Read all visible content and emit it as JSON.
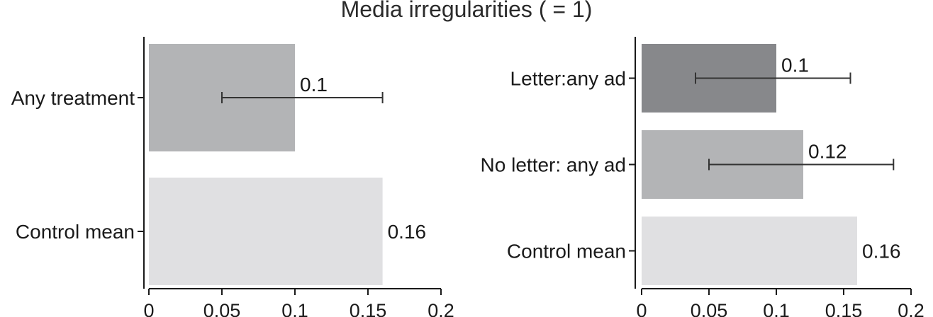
{
  "title": "Media irregularities ( = 1)",
  "chart_data": [
    {
      "type": "bar",
      "orientation": "horizontal",
      "categories": [
        "Any treatment",
        "Control mean"
      ],
      "values": [
        0.1,
        0.16
      ],
      "value_labels": [
        "0.1",
        "0.16"
      ],
      "error_bars": [
        [
          0.05,
          0.16
        ],
        null
      ],
      "colors": [
        "#b3b4b6",
        "#e0e0e2"
      ],
      "xlim": [
        0,
        0.2
      ],
      "xticks": [
        0,
        0.05,
        0.1,
        0.15,
        0.2
      ],
      "xtick_labels": [
        "0",
        "0.05",
        "0.1",
        "0.15",
        "0.2"
      ],
      "grid": false
    },
    {
      "type": "bar",
      "orientation": "horizontal",
      "categories": [
        "Letter:any ad",
        "No letter: any ad",
        "Control mean"
      ],
      "values": [
        0.1,
        0.12,
        0.16
      ],
      "value_labels": [
        "0.1",
        "0.12",
        "0.16"
      ],
      "error_bars": [
        [
          0.04,
          0.155
        ],
        [
          0.05,
          0.187
        ],
        null
      ],
      "colors": [
        "#87888b",
        "#b3b4b6",
        "#e0e0e2"
      ],
      "xlim": [
        0,
        0.2
      ],
      "xticks": [
        0,
        0.05,
        0.1,
        0.15,
        0.2
      ],
      "xtick_labels": [
        "0",
        "0.05",
        "0.1",
        "0.15",
        "0.2"
      ],
      "grid": false
    }
  ]
}
